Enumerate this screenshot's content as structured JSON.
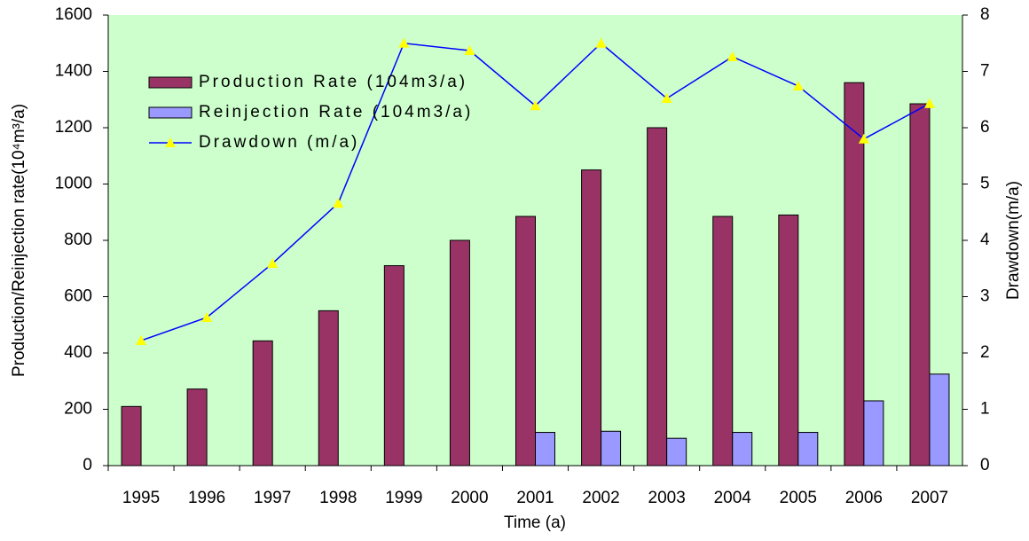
{
  "chart_data": {
    "type": "bar-line",
    "categories": [
      "1995",
      "1996",
      "1997",
      "1998",
      "1999",
      "2000",
      "2001",
      "2002",
      "2003",
      "2004",
      "2005",
      "2006",
      "2007"
    ],
    "series": [
      {
        "name": "Production Rate (104m3/a)",
        "type": "bar",
        "color": "#993366",
        "values": [
          210,
          272,
          443,
          550,
          710,
          800,
          885,
          1050,
          1200,
          885,
          890,
          1360,
          1285
        ]
      },
      {
        "name": "Reinjection Rate (104m3/a)",
        "type": "bar",
        "color": "#9999ff",
        "values": [
          null,
          null,
          null,
          null,
          null,
          null,
          118,
          122,
          97,
          118,
          118,
          230,
          325
        ]
      },
      {
        "name": "Drawdown (m/a)",
        "type": "line",
        "axis": "y2",
        "color": "#0000ff",
        "marker_color": "#ffff00",
        "values": [
          2.22,
          2.63,
          3.59,
          4.66,
          7.5,
          7.37,
          6.39,
          7.5,
          6.52,
          7.26,
          6.74,
          5.8,
          6.43
        ]
      }
    ],
    "xlabel": "Time (a)",
    "ylabel": "Production/Reinjection rate(10⁴m³/a)",
    "y2label": "Drawdown(m/a)",
    "ylim": [
      0,
      1600
    ],
    "yticks": [
      0,
      200,
      400,
      600,
      800,
      1000,
      1200,
      1400,
      1600
    ],
    "y2lim": [
      0,
      8
    ],
    "y2ticks": [
      0,
      1,
      2,
      3,
      4,
      5,
      6,
      7,
      8
    ],
    "background": "#ccffcc",
    "legend": "upper left"
  }
}
